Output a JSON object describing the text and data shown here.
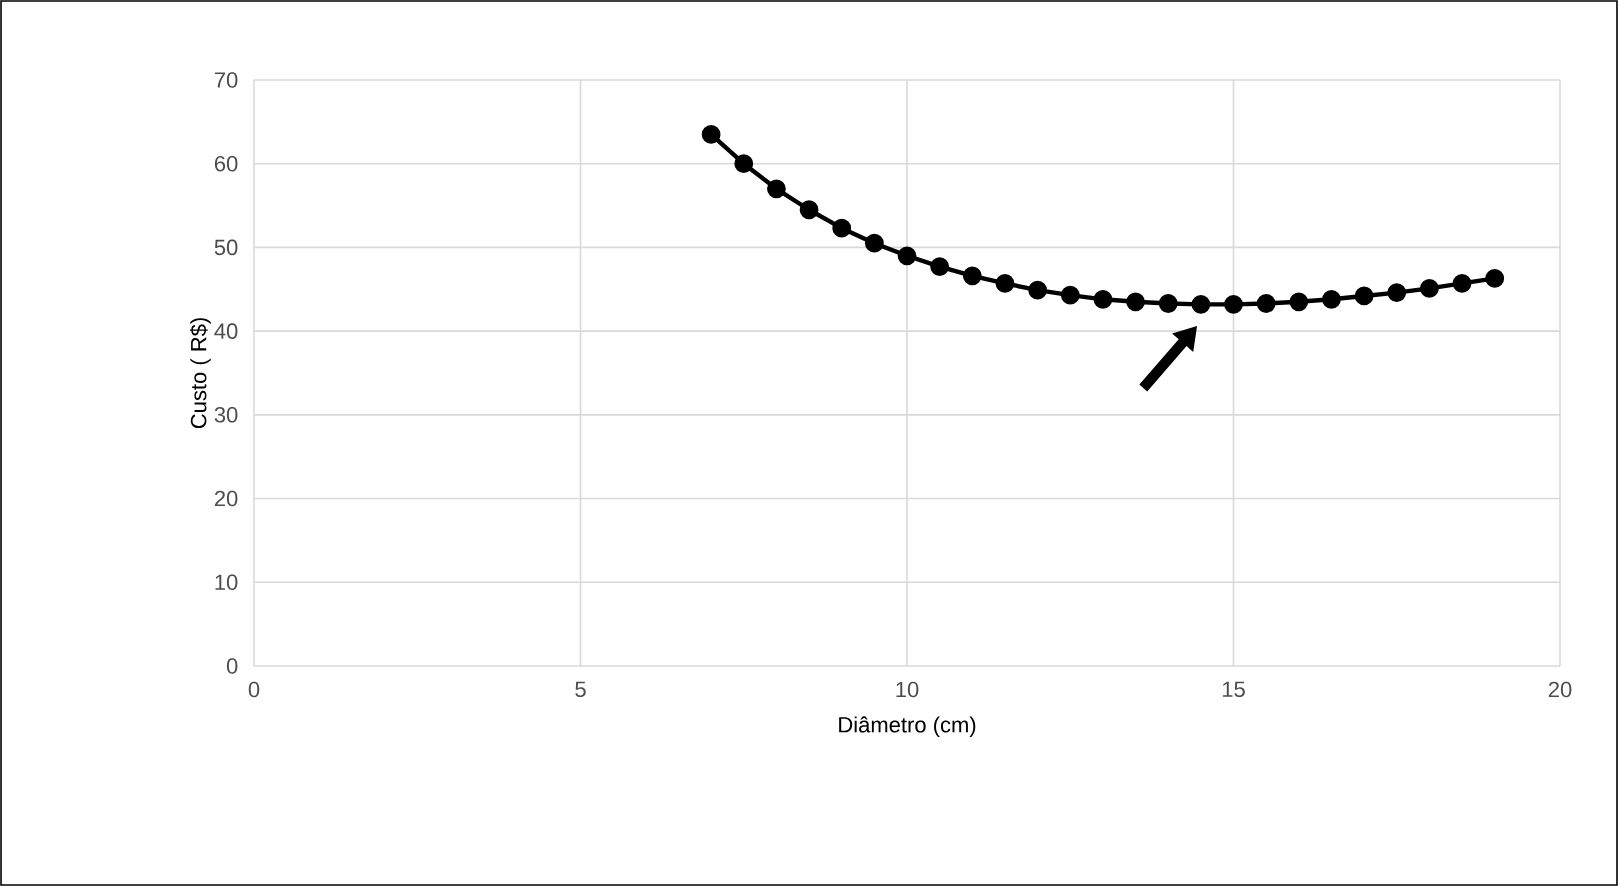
{
  "chart_data": {
    "type": "line",
    "xlabel": "Diâmetro (cm)",
    "ylabel": "Custo ( R$)",
    "x": [
      7,
      7.5,
      8,
      8.5,
      9,
      9.5,
      10,
      10.5,
      11,
      11.5,
      12,
      12.5,
      13,
      13.5,
      14,
      14.5,
      15,
      15.5,
      16,
      16.5,
      17,
      17.5,
      18,
      18.5,
      19
    ],
    "series": [
      {
        "color": "#000000",
        "values": [
          63.5,
          60,
          57,
          54.5,
          52.3,
          50.5,
          49,
          47.7,
          46.6,
          45.7,
          44.9,
          44.3,
          43.8,
          43.5,
          43.3,
          43.2,
          43.2,
          43.3,
          43.5,
          43.8,
          44.2,
          44.6,
          45.1,
          45.7,
          46.3
        ]
      }
    ],
    "xlim": [
      0,
      20
    ],
    "xticks": [
      0,
      5,
      10,
      15,
      20
    ],
    "ylim": [
      0,
      70
    ],
    "yticks": [
      0,
      10,
      20,
      30,
      40,
      50,
      60,
      70
    ],
    "grid": true,
    "marker": "circle",
    "line_style": "solid"
  }
}
